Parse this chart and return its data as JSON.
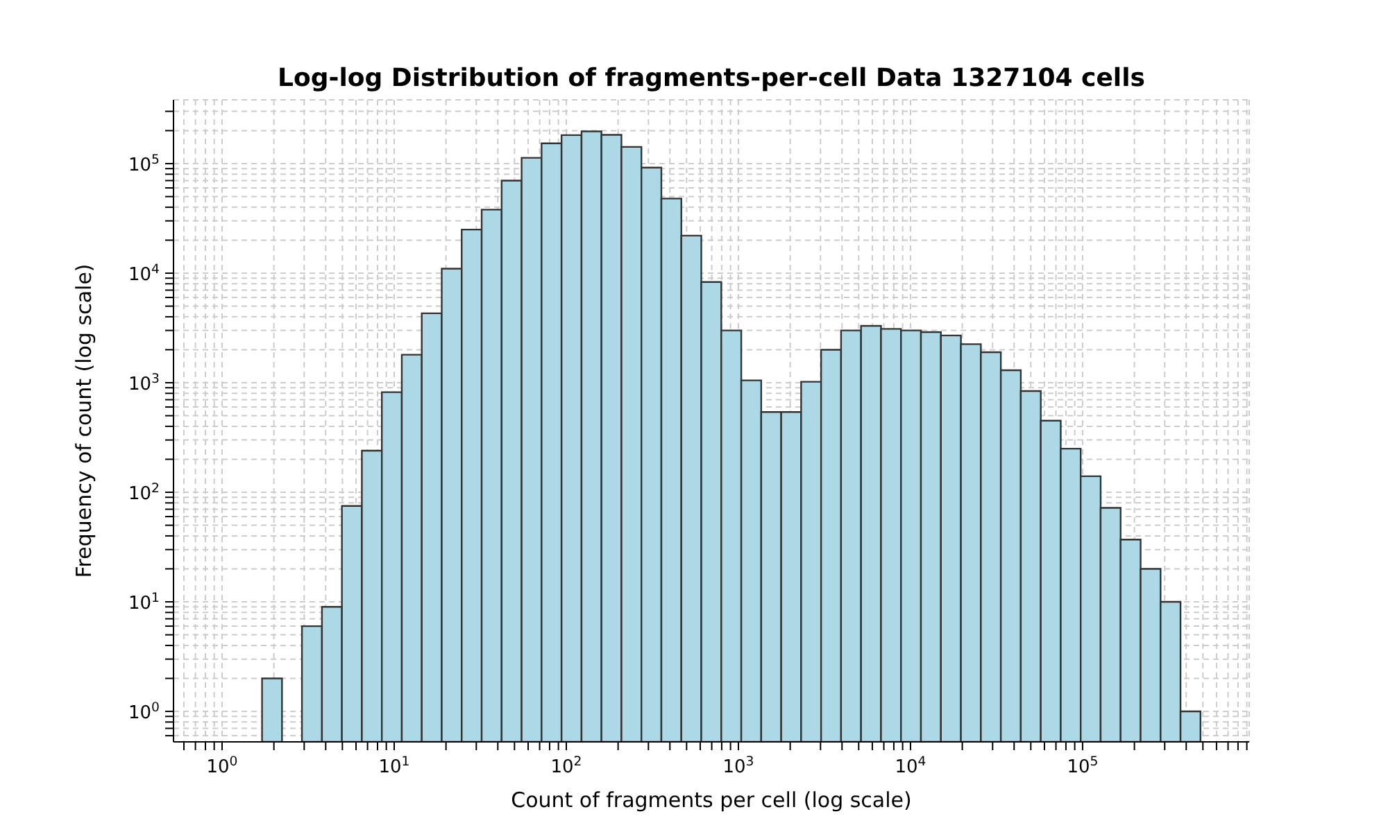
{
  "chart_data": {
    "type": "histogram",
    "title": "Log-log Distribution of fragments-per-cell Data 1327104 cells",
    "xlabel": "Count of fragments per cell (log scale)",
    "ylabel": "Frequency of count (log scale)",
    "color": "#add8e6",
    "log": "xy",
    "grid": true,
    "bins": [
      1.707,
      2.229,
      2.911,
      3.804,
      4.968,
      6.489,
      8.476,
      11.07,
      14.46,
      18.89,
      24.67,
      32.23,
      42.1,
      55,
      71.83,
      93.83,
      122.6,
      160.1,
      209.1,
      273.2,
      356.8,
      466.1,
      608.8,
      795.3,
      1039,
      1357,
      1773,
      2315,
      3024,
      3950,
      5160,
      6740,
      8805,
      11500,
      15020,
      19630,
      25640,
      33490,
      43740,
      57140,
      74640,
      97470,
      127300,
      166300,
      217300,
      283800,
      370700,
      484200
    ],
    "values": [
      2,
      null,
      6,
      9,
      75,
      240,
      820,
      1800,
      4300,
      11000,
      25000,
      38000,
      70000,
      113000,
      153000,
      182000,
      197000,
      183000,
      142000,
      92000,
      48000,
      22000,
      8300,
      3000,
      1050,
      540,
      540,
      1020,
      2000,
      3000,
      3300,
      3100,
      3000,
      2900,
      2700,
      2250,
      1900,
      1300,
      840,
      450,
      250,
      140,
      72,
      37,
      20,
      10,
      1
    ],
    "xlim": [
      0.522,
      929000
    ],
    "ylim": [
      0.527,
      382000
    ],
    "xticks": [
      {
        "value": 0.6,
        "label": null
      },
      {
        "value": 0.7,
        "label": null
      },
      {
        "value": 0.8,
        "label": null
      },
      {
        "value": 0.9,
        "label": null
      },
      {
        "value": 1,
        "label": "10$^{0}$"
      },
      {
        "value": 2,
        "label": null
      },
      {
        "value": 3,
        "label": null
      },
      {
        "value": 4,
        "label": null
      },
      {
        "value": 5,
        "label": null
      },
      {
        "value": 6,
        "label": null
      },
      {
        "value": 7,
        "label": null
      },
      {
        "value": 8,
        "label": null
      },
      {
        "value": 9,
        "label": null
      },
      {
        "value": 10,
        "label": "10$^{1}$"
      },
      {
        "value": 20,
        "label": null
      },
      {
        "value": 30,
        "label": null
      },
      {
        "value": 40,
        "label": null
      },
      {
        "value": 50,
        "label": null
      },
      {
        "value": 60,
        "label": null
      },
      {
        "value": 70,
        "label": null
      },
      {
        "value": 80,
        "label": null
      },
      {
        "value": 90,
        "label": null
      },
      {
        "value": 100,
        "label": "10$^{2}$"
      },
      {
        "value": 200,
        "label": null
      },
      {
        "value": 300,
        "label": null
      },
      {
        "value": 400,
        "label": null
      },
      {
        "value": 500,
        "label": null
      },
      {
        "value": 600,
        "label": null
      },
      {
        "value": 700,
        "label": null
      },
      {
        "value": 800,
        "label": null
      },
      {
        "value": 900,
        "label": null
      },
      {
        "value": 1000,
        "label": "10$^{3}$"
      },
      {
        "value": 2000,
        "label": null
      },
      {
        "value": 3000,
        "label": null
      },
      {
        "value": 4000,
        "label": null
      },
      {
        "value": 5000,
        "label": null
      },
      {
        "value": 6000,
        "label": null
      },
      {
        "value": 7000,
        "label": null
      },
      {
        "value": 8000,
        "label": null
      },
      {
        "value": 9000,
        "label": null
      },
      {
        "value": 10000,
        "label": "10$^{4}$"
      },
      {
        "value": 20000,
        "label": null
      },
      {
        "value": 30000,
        "label": null
      },
      {
        "value": 40000,
        "label": null
      },
      {
        "value": 50000,
        "label": null
      },
      {
        "value": 60000,
        "label": null
      },
      {
        "value": 70000,
        "label": null
      },
      {
        "value": 80000,
        "label": null
      },
      {
        "value": 90000,
        "label": null
      },
      {
        "value": 100000,
        "label": "10$^{5}$"
      },
      {
        "value": 200000,
        "label": null
      },
      {
        "value": 300000,
        "label": null
      },
      {
        "value": 400000,
        "label": null
      },
      {
        "value": 500000,
        "label": null
      },
      {
        "value": 600000,
        "label": null
      },
      {
        "value": 700000,
        "label": null
      },
      {
        "value": 800000,
        "label": null
      },
      {
        "value": 900000,
        "label": null
      }
    ],
    "yticks": [
      {
        "value": 0.6,
        "label": null
      },
      {
        "value": 0.7,
        "label": null
      },
      {
        "value": 0.8,
        "label": null
      },
      {
        "value": 0.9,
        "label": null
      },
      {
        "value": 1,
        "label": "10$^{0}$"
      },
      {
        "value": 2,
        "label": null
      },
      {
        "value": 3,
        "label": null
      },
      {
        "value": 4,
        "label": null
      },
      {
        "value": 5,
        "label": null
      },
      {
        "value": 6,
        "label": null
      },
      {
        "value": 7,
        "label": null
      },
      {
        "value": 8,
        "label": null
      },
      {
        "value": 9,
        "label": null
      },
      {
        "value": 10,
        "label": "10$^{1}$"
      },
      {
        "value": 20,
        "label": null
      },
      {
        "value": 30,
        "label": null
      },
      {
        "value": 40,
        "label": null
      },
      {
        "value": 50,
        "label": null
      },
      {
        "value": 60,
        "label": null
      },
      {
        "value": 70,
        "label": null
      },
      {
        "value": 80,
        "label": null
      },
      {
        "value": 90,
        "label": null
      },
      {
        "value": 100,
        "label": "10$^{2}$"
      },
      {
        "value": 200,
        "label": null
      },
      {
        "value": 300,
        "label": null
      },
      {
        "value": 400,
        "label": null
      },
      {
        "value": 500,
        "label": null
      },
      {
        "value": 600,
        "label": null
      },
      {
        "value": 700,
        "label": null
      },
      {
        "value": 800,
        "label": null
      },
      {
        "value": 900,
        "label": null
      },
      {
        "value": 1000,
        "label": "10$^{3}$"
      },
      {
        "value": 2000,
        "label": null
      },
      {
        "value": 3000,
        "label": null
      },
      {
        "value": 4000,
        "label": null
      },
      {
        "value": 5000,
        "label": null
      },
      {
        "value": 6000,
        "label": null
      },
      {
        "value": 7000,
        "label": null
      },
      {
        "value": 8000,
        "label": null
      },
      {
        "value": 9000,
        "label": null
      },
      {
        "value": 10000,
        "label": "10$^{4}$"
      },
      {
        "value": 20000,
        "label": null
      },
      {
        "value": 30000,
        "label": null
      },
      {
        "value": 40000,
        "label": null
      },
      {
        "value": 50000,
        "label": null
      },
      {
        "value": 60000,
        "label": null
      },
      {
        "value": 70000,
        "label": null
      },
      {
        "value": 80000,
        "label": null
      },
      {
        "value": 90000,
        "label": null
      },
      {
        "value": 100000,
        "label": "10$^{5}$"
      },
      {
        "value": 200000,
        "label": null
      },
      {
        "value": 300000,
        "label": null
      }
    ]
  }
}
